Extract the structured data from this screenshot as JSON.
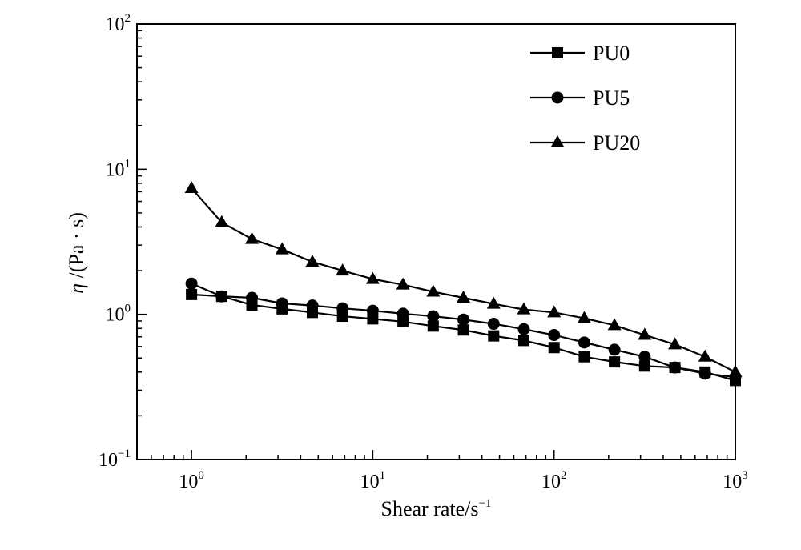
{
  "chart_data": {
    "type": "line",
    "xlabel": "Shear rate/s",
    "xlabel_exp": "−1",
    "ylabel_eta": "η",
    "ylabel_unit": " /(Pa · s)",
    "x_scale": "log",
    "y_scale": "log",
    "xlim": [
      0.5,
      1000
    ],
    "ylim": [
      0.1,
      100
    ],
    "x_ticks": [
      {
        "value": 1,
        "base": "10",
        "exp": "0"
      },
      {
        "value": 10,
        "base": "10",
        "exp": "1"
      },
      {
        "value": 100,
        "base": "10",
        "exp": "2"
      },
      {
        "value": 1000,
        "base": "10",
        "exp": "3"
      }
    ],
    "y_ticks": [
      {
        "value": 0.1,
        "base": "10",
        "exp": "−1"
      },
      {
        "value": 1,
        "base": "10",
        "exp": "0"
      },
      {
        "value": 10,
        "base": "10",
        "exp": "1"
      },
      {
        "value": 100,
        "base": "10",
        "exp": "2"
      }
    ],
    "grid": false,
    "legend_position": "top-right",
    "x": [
      1,
      1.468,
      2.154,
      3.162,
      4.642,
      6.813,
      10,
      14.68,
      21.54,
      31.62,
      46.42,
      68.13,
      100,
      146.8,
      215.4,
      316.2,
      464.2,
      681.3,
      1000
    ],
    "series": [
      {
        "name": "PU0",
        "marker": "square",
        "values": [
          1.37,
          1.33,
          1.16,
          1.09,
          1.03,
          0.97,
          0.93,
          0.89,
          0.83,
          0.78,
          0.71,
          0.66,
          0.59,
          0.51,
          0.47,
          0.44,
          0.43,
          0.4,
          0.35
        ]
      },
      {
        "name": "PU5",
        "marker": "circle",
        "values": [
          1.63,
          1.33,
          1.3,
          1.19,
          1.15,
          1.1,
          1.06,
          1.01,
          0.97,
          0.92,
          0.86,
          0.79,
          0.72,
          0.64,
          0.57,
          0.51,
          0.43,
          0.39,
          0.37
        ]
      },
      {
        "name": "PU20",
        "marker": "triangle",
        "values": [
          7.4,
          4.3,
          3.3,
          2.8,
          2.3,
          2.0,
          1.75,
          1.6,
          1.43,
          1.3,
          1.18,
          1.08,
          1.03,
          0.94,
          0.84,
          0.72,
          0.62,
          0.51,
          0.4
        ]
      }
    ]
  }
}
